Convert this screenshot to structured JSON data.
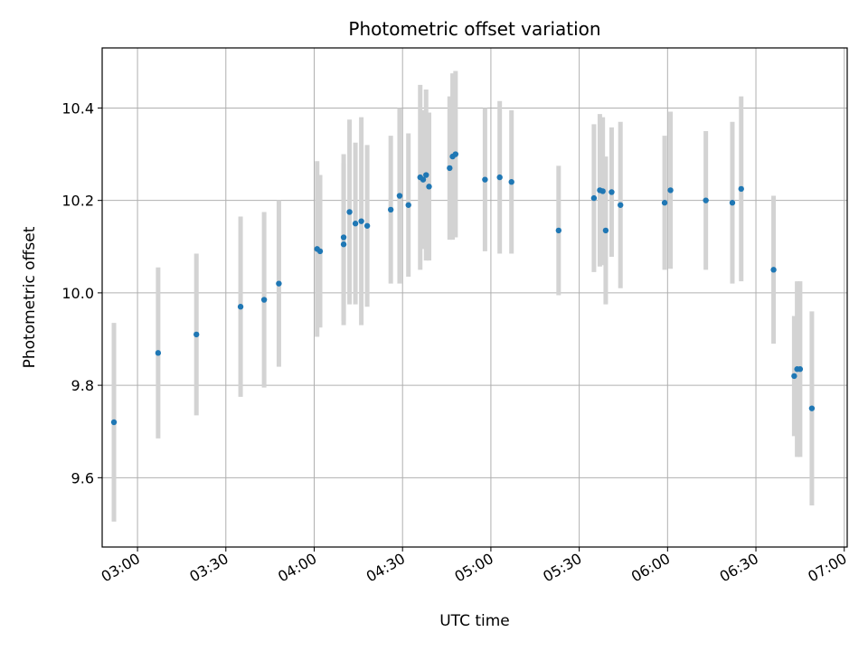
{
  "chart_data": {
    "type": "scatter",
    "title": "Photometric offset variation",
    "xlabel": "UTC time",
    "ylabel": "Photometric offset",
    "x_tick_labels": [
      "03:00",
      "03:30",
      "04:00",
      "04:30",
      "05:00",
      "05:30",
      "06:00",
      "06:30",
      "07:00"
    ],
    "y_tick_labels": [
      "9.6",
      "9.8",
      "10.0",
      "10.2",
      "10.4"
    ],
    "y_ticks": [
      9.6,
      9.8,
      10.0,
      10.2,
      10.4
    ],
    "xlim": [
      "02:48",
      "07:01"
    ],
    "ylim": [
      9.45,
      10.53
    ],
    "grid": true,
    "colors": {
      "marker": "#1f77b4",
      "errorbar": "#d3d3d3",
      "grid": "#b0b0b0"
    },
    "series": [
      {
        "x": [
          "02:52",
          "03:07",
          "03:20",
          "03:35",
          "03:43",
          "03:48",
          "04:01",
          "04:02",
          "04:10",
          "04:10",
          "04:12",
          "04:14",
          "04:16",
          "04:18",
          "04:26",
          "04:29",
          "04:32",
          "04:36",
          "04:37",
          "04:38",
          "04:39",
          "04:46",
          "04:47",
          "04:48",
          "04:58",
          "05:03",
          "05:07",
          "05:23",
          "05:35",
          "05:37",
          "05:38",
          "05:39",
          "05:41",
          "05:44",
          "05:59",
          "06:01",
          "06:13",
          "06:22",
          "06:25",
          "06:36",
          "06:43",
          "06:44",
          "06:45",
          "06:49"
        ],
        "y": [
          9.72,
          9.87,
          9.91,
          9.97,
          9.985,
          10.02,
          10.095,
          10.09,
          10.12,
          10.105,
          10.175,
          10.15,
          10.155,
          10.145,
          10.18,
          10.21,
          10.19,
          10.25,
          10.245,
          10.255,
          10.23,
          10.27,
          10.295,
          10.3,
          10.245,
          10.25,
          10.24,
          10.135,
          10.205,
          10.222,
          10.22,
          10.135,
          10.218,
          10.19,
          10.195,
          10.222,
          10.2,
          10.195,
          10.225,
          10.05,
          9.82,
          9.835,
          9.835,
          9.75
        ],
        "yerr": [
          0.215,
          0.185,
          0.175,
          0.195,
          0.19,
          0.18,
          0.19,
          0.165,
          0.18,
          0.175,
          0.2,
          0.175,
          0.225,
          0.175,
          0.16,
          0.19,
          0.155,
          0.2,
          0.15,
          0.185,
          0.16,
          0.155,
          0.18,
          0.18,
          0.155,
          0.165,
          0.155,
          0.14,
          0.16,
          0.165,
          0.16,
          0.16,
          0.14,
          0.18,
          0.145,
          0.17,
          0.15,
          0.175,
          0.2,
          0.16,
          0.13,
          0.19,
          0.19,
          0.21
        ]
      }
    ]
  }
}
